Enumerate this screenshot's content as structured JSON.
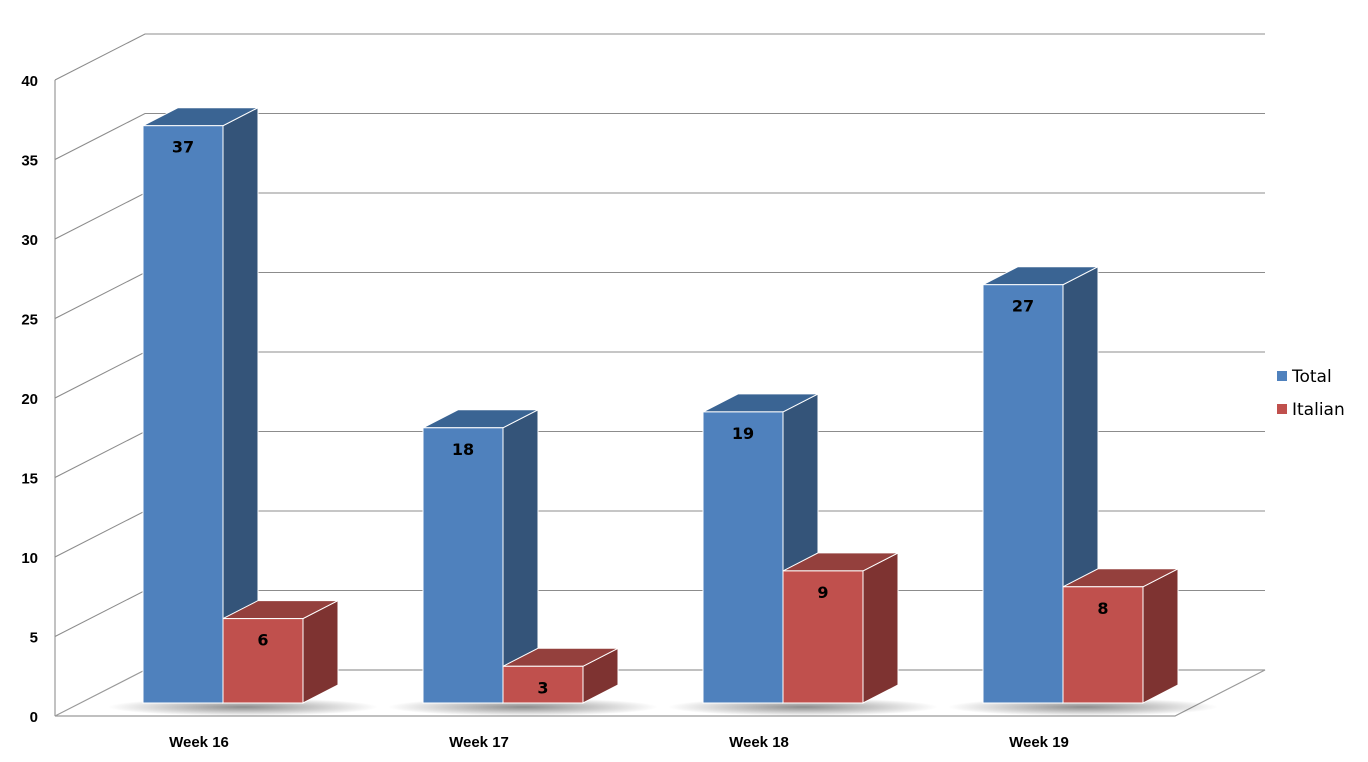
{
  "chart_data": {
    "type": "bar",
    "title": "",
    "xlabel": "",
    "ylabel": "",
    "categories": [
      "Week 16",
      "Week 17",
      "Week 18",
      "Week 19"
    ],
    "ylim": [
      0,
      40
    ],
    "yticks": [
      0,
      5,
      10,
      15,
      20,
      25,
      30,
      35,
      40
    ],
    "series": [
      {
        "name": "Total",
        "values": [
          37,
          18,
          19,
          27
        ],
        "color": "#4F81BD",
        "side_color": "#345479",
        "top_color": "#3A6493"
      },
      {
        "name": "Italian",
        "values": [
          6,
          3,
          9,
          8
        ],
        "color": "#C0504D",
        "side_color": "#7E3331",
        "top_color": "#94403D"
      }
    ],
    "grid": true,
    "legend_position": "right",
    "three_d": true
  }
}
